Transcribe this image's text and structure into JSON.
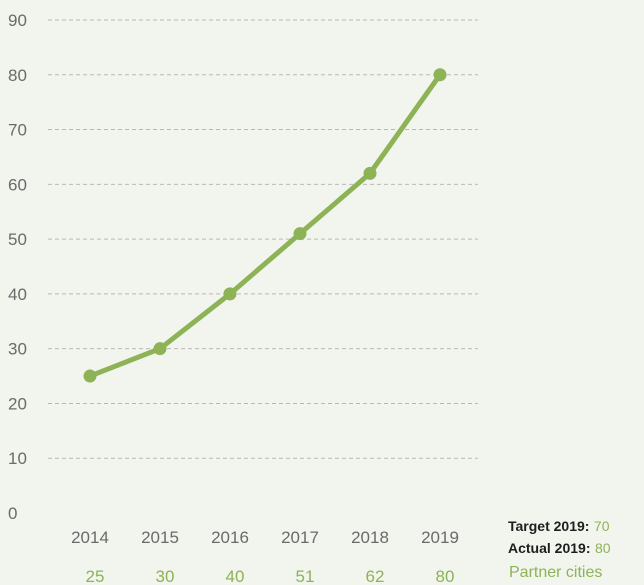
{
  "colors": {
    "line": "#8db356",
    "background": "#f1f5ee",
    "grid": "#b9b9b9"
  },
  "chart_data": {
    "type": "line",
    "x": [
      "2014",
      "2015",
      "2016",
      "2017",
      "2018",
      "2019"
    ],
    "series": [
      {
        "name": "Partner cities",
        "values": [
          25,
          30,
          40,
          51,
          62,
          80
        ]
      }
    ],
    "value_labels": [
      "25",
      "30",
      "40",
      "51",
      "62",
      "80"
    ],
    "ylim": [
      0,
      90
    ],
    "yticks": [
      "0",
      "10",
      "20",
      "30",
      "40",
      "50",
      "60",
      "70",
      "80",
      "90"
    ],
    "grid": true,
    "annotations": {
      "target_label": "Target 2019:",
      "target_value": "70",
      "actual_label": "Actual 2019:",
      "actual_value": "80"
    }
  }
}
